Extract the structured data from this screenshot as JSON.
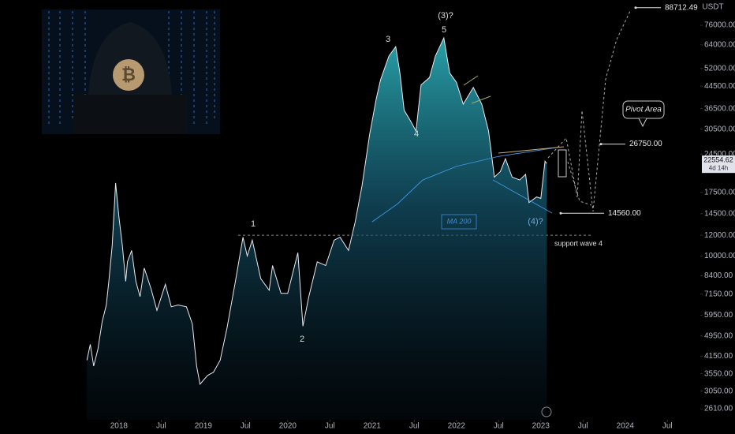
{
  "chart_data": {
    "type": "area",
    "log_scale": true,
    "currency": "USDT",
    "xlim": [
      2016.59,
      2024.89
    ],
    "xticks": [
      2018,
      {
        "value": 2018.5,
        "label": "Jul"
      },
      2019,
      {
        "value": 2019.5,
        "label": "Jul"
      },
      2020,
      {
        "value": 2020.5,
        "label": "Jul"
      },
      2021,
      {
        "value": 2021.5,
        "label": "Jul"
      },
      2022,
      {
        "value": 2022.5,
        "label": "Jul"
      },
      2023,
      {
        "value": 2023.5,
        "label": "Jul"
      },
      2024,
      {
        "value": 2024.5,
        "label": "Jul"
      }
    ],
    "ylim": [
      2370,
      94900
    ],
    "yticks": [
      {
        "value": 76000,
        "label": "76000.00"
      },
      {
        "value": 64000,
        "label": "64000.00"
      },
      {
        "value": 52000,
        "label": "52000.00"
      },
      {
        "value": 44500,
        "label": "44500.00"
      },
      {
        "value": 36500,
        "label": "36500.00"
      },
      {
        "value": 30500,
        "label": "30500.00"
      },
      {
        "value": 24500,
        "label": "24500.00"
      },
      {
        "value": 17500,
        "label": "17500.00"
      },
      {
        "value": 14500,
        "label": "14500.00"
      },
      {
        "value": 12000,
        "label": "12000.00"
      },
      {
        "value": 10000,
        "label": "10000.00"
      },
      {
        "value": 8400,
        "label": "8400.00"
      },
      {
        "value": 7150,
        "label": "7150.00"
      },
      {
        "value": 5950,
        "label": "5950.00"
      },
      {
        "value": 4950,
        "label": "4950.00"
      },
      {
        "value": 4150,
        "label": "4150.00"
      },
      {
        "value": 3550,
        "label": "3550.00"
      },
      {
        "value": 3050,
        "label": "3050.00"
      },
      {
        "value": 2610,
        "label": "2610.00"
      }
    ],
    "series": [
      {
        "color": "#e8eaf0",
        "x": [
          2017.62,
          2017.66,
          2017.7,
          2017.75,
          2017.8,
          2017.85,
          2017.88,
          2017.92,
          2017.96,
          2018.0,
          2018.04,
          2018.08,
          2018.1,
          2018.15,
          2018.2,
          2018.25,
          2018.3,
          2018.38,
          2018.45,
          2018.55,
          2018.62,
          2018.7,
          2018.8,
          2018.87,
          2018.92,
          2018.96,
          2019.05,
          2019.12,
          2019.2,
          2019.28,
          2019.38,
          2019.47,
          2019.52,
          2019.58,
          2019.68,
          2019.78,
          2019.82,
          2019.92,
          2020.0,
          2020.12,
          2020.18,
          2020.25,
          2020.35,
          2020.45,
          2020.55,
          2020.62,
          2020.72,
          2020.8,
          2020.88,
          2020.97,
          2021.05,
          2021.1,
          2021.2,
          2021.28,
          2021.33,
          2021.38,
          2021.45,
          2021.52,
          2021.58,
          2021.68,
          2021.75,
          2021.85,
          2021.92,
          2022.0,
          2022.08,
          2022.2,
          2022.3,
          2022.38,
          2022.45,
          2022.52,
          2022.58,
          2022.66,
          2022.75,
          2022.82,
          2022.86,
          2022.95,
          2023.0,
          2023.05,
          2023.07
        ],
        "values": [
          4000,
          4600,
          3800,
          4400,
          5600,
          6500,
          8000,
          11000,
          19000,
          14000,
          11000,
          8000,
          9500,
          10500,
          8000,
          7000,
          9000,
          7500,
          6200,
          7800,
          6400,
          6500,
          6400,
          5500,
          3800,
          3240,
          3500,
          3600,
          4000,
          5300,
          8000,
          11800,
          10000,
          11500,
          8200,
          7400,
          9200,
          7200,
          7200,
          10300,
          5400,
          7000,
          9500,
          9200,
          11500,
          11800,
          10500,
          13500,
          18500,
          29000,
          40000,
          47000,
          58000,
          63000,
          50000,
          36000,
          33000,
          30000,
          45000,
          48000,
          58000,
          68000,
          50000,
          46000,
          38000,
          44000,
          38000,
          30000,
          20000,
          21000,
          23500,
          20000,
          19500,
          20500,
          16000,
          16800,
          16600,
          23000,
          22554.62
        ]
      },
      {
        "name": "MA 200",
        "color": "#3d8fd6",
        "x": [
          2021.0,
          2021.3,
          2021.6,
          2022.0,
          2022.5,
          2023.2
        ],
        "values": [
          13500,
          15800,
          19500,
          22000,
          24000,
          26000
        ]
      }
    ],
    "current_price": 22554.62,
    "countdown": "4d 14h",
    "levels": [
      {
        "value": 88712.49,
        "label": "88712.49"
      },
      {
        "value": 26750,
        "label": "26750.00"
      },
      {
        "value": 14560,
        "label": "14560.00"
      }
    ],
    "support": {
      "value": 12000,
      "label": "support wave 4"
    },
    "callout": "Pivot Area",
    "waves": [
      "1",
      "2",
      "3",
      "4",
      "5",
      "(3)?",
      "(4)?"
    ]
  }
}
